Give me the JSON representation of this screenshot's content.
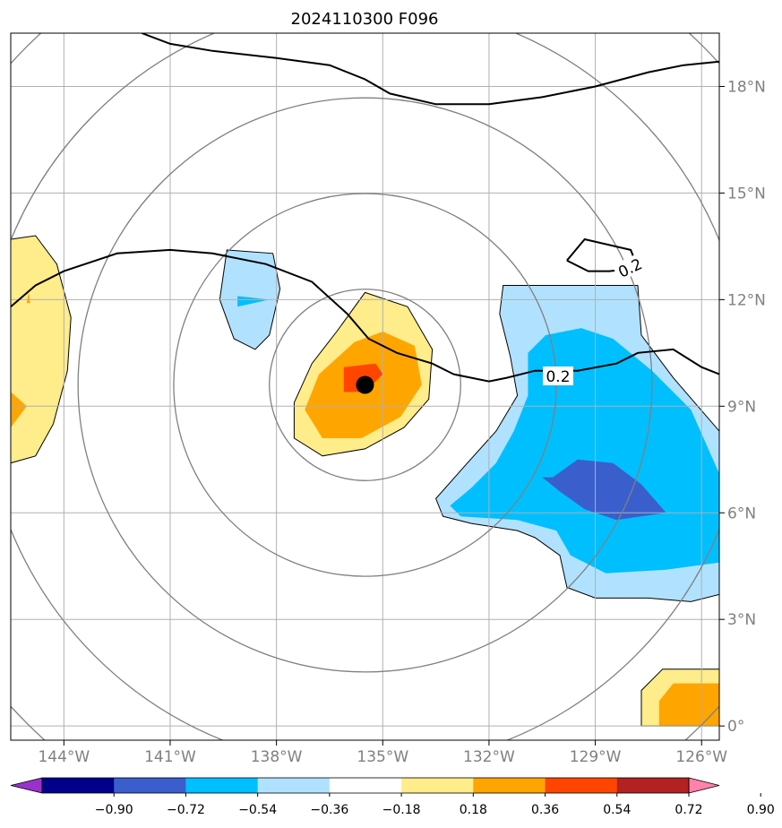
{
  "chart_data": {
    "type": "contour_map",
    "title": "2024110300 F096",
    "x_ticks": [
      "144°W",
      "141°W",
      "138°W",
      "135°W",
      "132°W",
      "129°W",
      "126°W"
    ],
    "x_tick_values": [
      -144,
      -141,
      -138,
      -135,
      -132,
      -129,
      -126
    ],
    "y_ticks": [
      "0°",
      "3°N",
      "6°N",
      "9°N",
      "12°N",
      "15°N",
      "18°N"
    ],
    "y_tick_values": [
      0,
      3,
      6,
      9,
      12,
      15,
      18
    ],
    "xlim": [
      -145.5,
      -125.5
    ],
    "ylim": [
      -0.4,
      19.5
    ],
    "grid": true,
    "center": {
      "lon": -135.5,
      "lat": 9.6
    },
    "range_rings_deg": [
      2.7,
      5.4,
      8.1,
      10.8,
      13.5
    ],
    "contour_line_label": "0.2",
    "contour_line_label_2": "0.2",
    "colorbar": {
      "levels": [
        -0.9,
        -0.72,
        -0.54,
        -0.36,
        -0.18,
        0.18,
        0.36,
        0.54,
        0.72,
        0.9
      ],
      "labels": [
        "−0.90",
        "−0.72",
        "−0.54",
        "−0.36",
        "−0.18",
        "0.18",
        "0.36",
        "0.54",
        "0.72",
        "0.90"
      ],
      "colors": [
        "#9932cc",
        "#00008b",
        "#3a5fcd",
        "#00bfff",
        "#b0e2ff",
        "#ffffff",
        "#ffec8b",
        "#ffa500",
        "#ff4500",
        "#b22222",
        "#ff82ab"
      ],
      "extend": "both"
    },
    "regions": [
      {
        "name": "west-positive-outer",
        "color": "#ffec8b",
        "pts": [
          [
            -145.5,
            13.7
          ],
          [
            -144.8,
            13.8
          ],
          [
            -144.2,
            13.0
          ],
          [
            -143.8,
            11.5
          ],
          [
            -143.9,
            10.0
          ],
          [
            -144.3,
            8.5
          ],
          [
            -144.8,
            7.6
          ],
          [
            -145.5,
            7.4
          ]
        ]
      },
      {
        "name": "west-positive-core",
        "color": "#ffa500",
        "pts": [
          [
            -145.5,
            9.4
          ],
          [
            -145.05,
            9.0
          ],
          [
            -145.5,
            8.4
          ]
        ]
      },
      {
        "name": "west-positive-spot",
        "color": "#ffa500",
        "pts": [
          [
            -145.0,
            12.2
          ],
          [
            -144.95,
            11.9
          ],
          [
            -145.05,
            11.9
          ]
        ]
      },
      {
        "name": "upper-negative-outer",
        "color": "#b0e2ff",
        "pts": [
          [
            -139.4,
            13.4
          ],
          [
            -138.1,
            13.3
          ],
          [
            -137.9,
            12.3
          ],
          [
            -138.2,
            11.0
          ],
          [
            -138.6,
            10.6
          ],
          [
            -139.2,
            10.9
          ],
          [
            -139.6,
            12.0
          ]
        ]
      },
      {
        "name": "upper-negative-core",
        "color": "#00bfff",
        "pts": [
          [
            -139.1,
            12.1
          ],
          [
            -138.2,
            12.0
          ],
          [
            -139.1,
            11.8
          ]
        ]
      },
      {
        "name": "center-positive-outer",
        "color": "#ffec8b",
        "pts": [
          [
            -135.5,
            12.2
          ],
          [
            -134.3,
            11.8
          ],
          [
            -133.6,
            10.6
          ],
          [
            -133.7,
            9.2
          ],
          [
            -134.4,
            8.4
          ],
          [
            -135.5,
            7.8
          ],
          [
            -136.7,
            7.6
          ],
          [
            -137.5,
            8.1
          ],
          [
            -137.5,
            9.1
          ],
          [
            -137.0,
            10.2
          ],
          [
            -136.3,
            11.1
          ]
        ]
      },
      {
        "name": "center-positive-mid",
        "color": "#ffa500",
        "pts": [
          [
            -135.0,
            11.1
          ],
          [
            -134.1,
            10.7
          ],
          [
            -133.9,
            9.6
          ],
          [
            -134.5,
            8.7
          ],
          [
            -135.6,
            8.1
          ],
          [
            -136.7,
            8.1
          ],
          [
            -137.2,
            8.9
          ],
          [
            -136.8,
            9.9
          ],
          [
            -135.8,
            10.8
          ]
        ]
      },
      {
        "name": "center-positive-core",
        "color": "#ff4500",
        "pts": [
          [
            -136.1,
            10.1
          ],
          [
            -135.2,
            10.2
          ],
          [
            -135.0,
            9.9
          ],
          [
            -135.5,
            9.4
          ],
          [
            -136.1,
            9.4
          ]
        ]
      },
      {
        "name": "east-negative-outer",
        "color": "#b0e2ff",
        "pts": [
          [
            -131.6,
            12.4
          ],
          [
            -129.0,
            12.4
          ],
          [
            -127.8,
            12.4
          ],
          [
            -127.7,
            11.0
          ],
          [
            -126.8,
            9.8
          ],
          [
            -125.5,
            8.3
          ],
          [
            -125.5,
            3.7
          ],
          [
            -126.3,
            3.5
          ],
          [
            -127.5,
            3.6
          ],
          [
            -129.0,
            3.6
          ],
          [
            -129.8,
            3.9
          ],
          [
            -130.0,
            4.8
          ],
          [
            -130.7,
            5.3
          ],
          [
            -131.2,
            5.5
          ],
          [
            -132.5,
            5.7
          ],
          [
            -133.3,
            5.9
          ],
          [
            -133.5,
            6.4
          ],
          [
            -132.7,
            7.3
          ],
          [
            -131.8,
            8.3
          ],
          [
            -131.2,
            9.3
          ],
          [
            -131.4,
            10.4
          ],
          [
            -131.7,
            11.6
          ]
        ]
      },
      {
        "name": "east-negative-mid",
        "color": "#00bfff",
        "pts": [
          [
            -130.4,
            11.0
          ],
          [
            -129.4,
            11.2
          ],
          [
            -128.5,
            10.9
          ],
          [
            -127.4,
            10.0
          ],
          [
            -126.3,
            8.9
          ],
          [
            -125.5,
            7.1
          ],
          [
            -125.5,
            4.6
          ],
          [
            -127.0,
            4.4
          ],
          [
            -128.7,
            4.3
          ],
          [
            -129.7,
            4.8
          ],
          [
            -130.1,
            5.5
          ],
          [
            -131.2,
            5.8
          ],
          [
            -132.8,
            5.9
          ],
          [
            -133.1,
            6.2
          ],
          [
            -132.5,
            6.7
          ],
          [
            -131.8,
            7.4
          ],
          [
            -131.3,
            8.3
          ],
          [
            -130.9,
            9.3
          ],
          [
            -130.9,
            10.5
          ]
        ]
      },
      {
        "name": "east-negative-core",
        "color": "#3a5fcd",
        "pts": [
          [
            -130.2,
            7.0
          ],
          [
            -129.5,
            7.5
          ],
          [
            -128.5,
            7.4
          ],
          [
            -127.7,
            6.8
          ],
          [
            -127.0,
            6.0
          ],
          [
            -128.4,
            5.8
          ],
          [
            -129.3,
            6.1
          ],
          [
            -130.0,
            6.6
          ],
          [
            -130.5,
            7.0
          ]
        ]
      },
      {
        "name": "southeast-positive-outer",
        "color": "#ffec8b",
        "pts": [
          [
            -127.1,
            1.6
          ],
          [
            -125.5,
            1.6
          ],
          [
            -125.5,
            0
          ],
          [
            -127.7,
            0
          ],
          [
            -127.7,
            1.0
          ]
        ]
      },
      {
        "name": "southeast-positive-core",
        "color": "#ffa500",
        "pts": [
          [
            -126.8,
            1.2
          ],
          [
            -125.5,
            1.2
          ],
          [
            -125.5,
            0
          ],
          [
            -127.2,
            0
          ],
          [
            -127.2,
            0.7
          ]
        ]
      }
    ]
  }
}
